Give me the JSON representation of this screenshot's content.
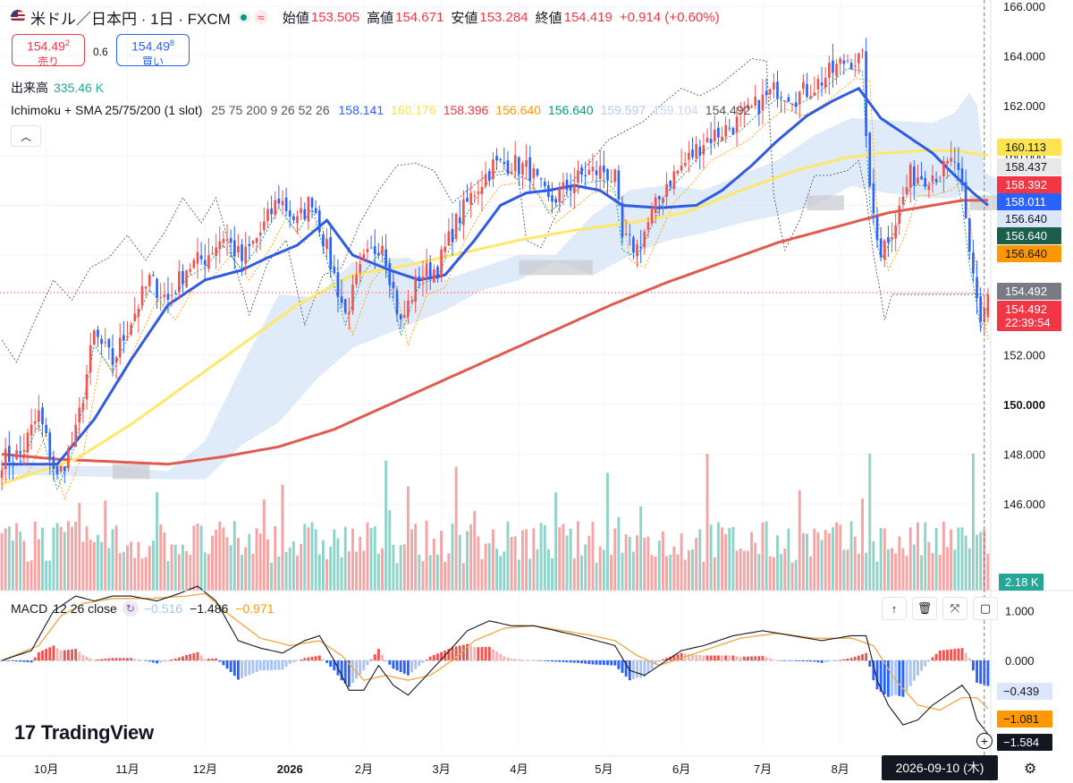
{
  "header": {
    "symbol_title": "米ドル／日本円 · 1日 · FXCM",
    "open_label": "始値",
    "open_value": "153.505",
    "high_label": "高値",
    "high_value": "154.671",
    "low_label": "安値",
    "low_value": "153.284",
    "close_label": "終値",
    "close_value": "154.419",
    "change_value": "+0.914 (+0.60%)"
  },
  "trade": {
    "sell_price_main": "154.49",
    "sell_price_sup": "2",
    "sell_label": "売り",
    "spread": "0.6",
    "buy_price_main": "154.49",
    "buy_price_sup": "8",
    "buy_label": "買い"
  },
  "volume": {
    "label": "出来高",
    "value": "335.46 K",
    "last_tag": "2.18 K"
  },
  "indicator": {
    "name": "Ichimoku + SMA 25/75/200 (1 slot)",
    "params": "25 75 200 9 26 52 26",
    "values": [
      "158.141",
      "160.176",
      "158.396",
      "156.640",
      "156.640",
      "159.597",
      "159.104",
      "154.492"
    ],
    "value_colors": [
      "#2962ff",
      "#ffe34f",
      "#f23645",
      "#ff9800",
      "#089981",
      "#b3cdf5",
      "#c8d7f0",
      "#555555"
    ]
  },
  "macd": {
    "label": "MACD",
    "params": "12 26 close",
    "values": [
      "−0.516",
      "−1.486",
      "−0.971"
    ],
    "value_colors": [
      "#a8c1f7",
      "#131722",
      "#ff9800"
    ],
    "axis_ticks": [
      "1.000",
      "0.000"
    ],
    "tags": [
      {
        "text": "−0.439",
        "bg": "#dbe6fb",
        "fg": "#131722",
        "value": -0.439
      },
      {
        "text": "−1.081",
        "bg": "#ff9800",
        "fg": "#131722",
        "value": -1.081
      },
      {
        "text": "−1.584",
        "bg": "#131722",
        "fg": "#ffffff",
        "value": -1.584
      }
    ]
  },
  "price_tags": [
    {
      "text": "160.113",
      "bg": "#ffe34f",
      "fg": "#131722",
      "value": 160.113
    },
    {
      "text": "158.437",
      "bg": "#e8e8e8",
      "fg": "#131722",
      "value": 158.437
    },
    {
      "text": "158.392",
      "bg": "#f23645",
      "fg": "#ffffff",
      "value": 158.392
    },
    {
      "text": "158.011",
      "bg": "#2962ff",
      "fg": "#ffffff",
      "value": 158.011
    },
    {
      "text": "156.640",
      "bg": "#dbe6fb",
      "fg": "#131722",
      "value": 156.64
    },
    {
      "text": "156.640",
      "bg": "#1b5e4a",
      "fg": "#ffffff",
      "value": 156.64
    },
    {
      "text": "156.640",
      "bg": "#ff9800",
      "fg": "#131722",
      "value": 156.64
    },
    {
      "text": "154.492",
      "bg": "#787b86",
      "fg": "#ffffff",
      "value": 154.492
    },
    {
      "text": "154.492",
      "bg": "#f23645",
      "fg": "#ffffff",
      "value": 154.492
    },
    {
      "text": "22:39:54",
      "bg": "#f23645",
      "fg": "#ffffff",
      "value": 154.492
    }
  ],
  "branding": {
    "logo_text": "TradingView",
    "logo_mark": "17"
  },
  "crosshair_date": "2026-09-10 (木)",
  "chart_data": {
    "type": "candlestick",
    "y_axis_ticks": [
      "166.000",
      "164.000",
      "162.000",
      "160.000",
      "158.000",
      "156.000",
      "154.000",
      "152.000",
      "150.000",
      "148.000",
      "146.000"
    ],
    "ylim": [
      145.0,
      166.0
    ],
    "x_axis_ticks": [
      "10月",
      "11月",
      "12月",
      "2026",
      "2月",
      "3月",
      "4月",
      "5月",
      "6月",
      "7月",
      "8月"
    ],
    "close_anchors": [
      [
        0,
        147.8
      ],
      [
        5,
        148.0
      ],
      [
        10,
        149.6
      ],
      [
        15,
        147.0
      ],
      [
        20,
        148.8
      ],
      [
        25,
        152.8
      ],
      [
        30,
        151.7
      ],
      [
        35,
        153.4
      ],
      [
        40,
        155.0
      ],
      [
        45,
        154.2
      ],
      [
        50,
        155.5
      ],
      [
        55,
        155.9
      ],
      [
        60,
        156.8
      ],
      [
        65,
        155.8
      ],
      [
        70,
        156.9
      ],
      [
        75,
        158.3
      ],
      [
        80,
        157.3
      ],
      [
        84,
        158.3
      ],
      [
        88,
        156.2
      ],
      [
        93,
        153.6
      ],
      [
        98,
        155.7
      ],
      [
        103,
        156.6
      ],
      [
        108,
        153.2
      ],
      [
        113,
        155.2
      ],
      [
        118,
        155.5
      ],
      [
        123,
        157.3
      ],
      [
        128,
        158.6
      ],
      [
        133,
        159.6
      ],
      [
        138,
        159.7
      ],
      [
        143,
        159.4
      ],
      [
        148,
        158.1
      ],
      [
        153,
        158.7
      ],
      [
        158,
        159.3
      ],
      [
        163,
        159.4
      ],
      [
        166,
        159.0
      ],
      [
        168,
        156.6
      ],
      [
        172,
        156.3
      ],
      [
        176,
        157.6
      ],
      [
        180,
        158.9
      ],
      [
        185,
        159.7
      ],
      [
        190,
        160.6
      ],
      [
        195,
        161.0
      ],
      [
        200,
        161.4
      ],
      [
        205,
        162.1
      ],
      [
        210,
        162.7
      ],
      [
        215,
        162.4
      ],
      [
        220,
        162.8
      ],
      [
        225,
        163.4
      ],
      [
        229,
        163.9
      ],
      [
        233,
        163.8
      ],
      [
        235,
        158.4
      ],
      [
        238,
        156.2
      ],
      [
        242,
        157.4
      ],
      [
        246,
        159.2
      ],
      [
        250,
        159.2
      ],
      [
        255,
        159.4
      ],
      [
        258,
        159.8
      ],
      [
        260,
        158.4
      ],
      [
        262,
        156.0
      ],
      [
        264,
        154.4
      ],
      [
        265,
        153.4
      ],
      [
        266,
        153.9
      ],
      [
        267,
        154.42
      ]
    ],
    "sma_25_anchors": [
      [
        0,
        147.6
      ],
      [
        15,
        147.6
      ],
      [
        25,
        149.4
      ],
      [
        35,
        151.8
      ],
      [
        45,
        154.0
      ],
      [
        55,
        155.0
      ],
      [
        65,
        155.4
      ],
      [
        72,
        155.9
      ],
      [
        80,
        156.4
      ],
      [
        88,
        157.4
      ],
      [
        95,
        156.0
      ],
      [
        105,
        155.4
      ],
      [
        113,
        155.0
      ],
      [
        120,
        155.2
      ],
      [
        128,
        156.6
      ],
      [
        135,
        158.0
      ],
      [
        142,
        158.5
      ],
      [
        148,
        158.6
      ],
      [
        155,
        158.8
      ],
      [
        162,
        158.6
      ],
      [
        168,
        158.0
      ],
      [
        178,
        157.9
      ],
      [
        188,
        158.0
      ],
      [
        195,
        158.6
      ],
      [
        203,
        159.6
      ],
      [
        210,
        160.6
      ],
      [
        218,
        161.6
      ],
      [
        225,
        162.2
      ],
      [
        232,
        162.7
      ],
      [
        238,
        161.5
      ],
      [
        245,
        160.8
      ],
      [
        252,
        160.1
      ],
      [
        258,
        159.2
      ],
      [
        263,
        158.5
      ],
      [
        267,
        158.0
      ]
    ],
    "sma_75_anchors": [
      [
        0,
        146.8
      ],
      [
        20,
        147.8
      ],
      [
        35,
        149.2
      ],
      [
        50,
        150.8
      ],
      [
        65,
        152.4
      ],
      [
        80,
        154.0
      ],
      [
        95,
        155.2
      ],
      [
        110,
        155.6
      ],
      [
        125,
        156.1
      ],
      [
        140,
        156.6
      ],
      [
        155,
        157.0
      ],
      [
        170,
        157.3
      ],
      [
        185,
        157.7
      ],
      [
        200,
        158.6
      ],
      [
        215,
        159.4
      ],
      [
        228,
        159.9
      ],
      [
        238,
        160.1
      ],
      [
        250,
        160.2
      ],
      [
        258,
        160.2
      ],
      [
        263,
        160.1
      ],
      [
        267,
        160.0
      ]
    ],
    "sma_200_anchors": [
      [
        0,
        148.0
      ],
      [
        15,
        147.8
      ],
      [
        30,
        147.7
      ],
      [
        45,
        147.6
      ],
      [
        60,
        147.9
      ],
      [
        75,
        148.3
      ],
      [
        90,
        149.0
      ],
      [
        105,
        150.0
      ],
      [
        120,
        151.0
      ],
      [
        135,
        152.0
      ],
      [
        150,
        153.0
      ],
      [
        165,
        154.0
      ],
      [
        180,
        154.9
      ],
      [
        195,
        155.7
      ],
      [
        210,
        156.5
      ],
      [
        225,
        157.1
      ],
      [
        240,
        157.7
      ],
      [
        252,
        158.0
      ],
      [
        260,
        158.2
      ],
      [
        267,
        158.2
      ]
    ],
    "cloud_top_anchors": [
      [
        0,
        147.5
      ],
      [
        30,
        147.5
      ],
      [
        45,
        147.3
      ],
      [
        55,
        148.5
      ],
      [
        65,
        151.5
      ],
      [
        75,
        154.4
      ],
      [
        85,
        154.3
      ],
      [
        95,
        155.7
      ],
      [
        110,
        155.9
      ],
      [
        120,
        155.0
      ],
      [
        130,
        155.5
      ],
      [
        140,
        156.0
      ],
      [
        150,
        156.0
      ],
      [
        160,
        157.6
      ],
      [
        170,
        158.6
      ],
      [
        180,
        158.8
      ],
      [
        190,
        158.6
      ],
      [
        200,
        159.2
      ],
      [
        210,
        159.8
      ],
      [
        220,
        160.8
      ],
      [
        230,
        161.5
      ],
      [
        240,
        161.4
      ],
      [
        252,
        161.3
      ],
      [
        258,
        161.7
      ],
      [
        262,
        162.5
      ],
      [
        264,
        162.0
      ],
      [
        266,
        159.3
      ],
      [
        270,
        159.0
      ],
      [
        275,
        159.2
      ]
    ],
    "cloud_bottom_anchors": [
      [
        0,
        147.2
      ],
      [
        30,
        147.1
      ],
      [
        45,
        147.0
      ],
      [
        55,
        147.0
      ],
      [
        65,
        148.4
      ],
      [
        75,
        149.3
      ],
      [
        85,
        151.0
      ],
      [
        95,
        152.3
      ],
      [
        110,
        153.2
      ],
      [
        120,
        153.8
      ],
      [
        130,
        154.6
      ],
      [
        140,
        155.0
      ],
      [
        150,
        155.8
      ],
      [
        160,
        155.2
      ],
      [
        170,
        156.0
      ],
      [
        180,
        156.6
      ],
      [
        190,
        156.9
      ],
      [
        200,
        157.3
      ],
      [
        210,
        157.6
      ],
      [
        220,
        158.0
      ],
      [
        230,
        158.8
      ],
      [
        240,
        158.5
      ],
      [
        252,
        158.3
      ],
      [
        258,
        158.3
      ],
      [
        262,
        158.7
      ],
      [
        264,
        158.6
      ],
      [
        266,
        158.6
      ],
      [
        270,
        158.3
      ],
      [
        275,
        158.5
      ]
    ],
    "volume_axis_max": 20000,
    "macd_ylim": [
      -1.75,
      1.5
    ],
    "macd_anchors": [
      [
        0,
        0.0
      ],
      [
        8,
        0.2
      ],
      [
        14,
        1.0
      ],
      [
        20,
        1.3
      ],
      [
        25,
        1.2
      ],
      [
        30,
        1.3
      ],
      [
        35,
        1.3
      ],
      [
        42,
        1.2
      ],
      [
        48,
        1.35
      ],
      [
        53,
        1.5
      ],
      [
        58,
        1.2
      ],
      [
        64,
        0.4
      ],
      [
        70,
        0.25
      ],
      [
        76,
        0.15
      ],
      [
        82,
        0.4
      ],
      [
        86,
        0.5
      ],
      [
        90,
        0.0
      ],
      [
        94,
        -0.6
      ],
      [
        98,
        -0.6
      ],
      [
        102,
        -0.1
      ],
      [
        106,
        -0.5
      ],
      [
        110,
        -0.7
      ],
      [
        115,
        -0.3
      ],
      [
        120,
        0.1
      ],
      [
        126,
        0.6
      ],
      [
        132,
        0.8
      ],
      [
        138,
        0.7
      ],
      [
        144,
        0.7
      ],
      [
        150,
        0.6
      ],
      [
        156,
        0.5
      ],
      [
        161,
        0.4
      ],
      [
        166,
        0.3
      ],
      [
        170,
        -0.2
      ],
      [
        174,
        -0.3
      ],
      [
        178,
        -0.1
      ],
      [
        184,
        0.2
      ],
      [
        190,
        0.3
      ],
      [
        198,
        0.5
      ],
      [
        206,
        0.6
      ],
      [
        214,
        0.5
      ],
      [
        222,
        0.4
      ],
      [
        230,
        0.5
      ],
      [
        234,
        0.5
      ],
      [
        237,
        -0.4
      ],
      [
        240,
        -0.9
      ],
      [
        244,
        -1.3
      ],
      [
        248,
        -1.2
      ],
      [
        252,
        -0.9
      ],
      [
        256,
        -0.7
      ],
      [
        260,
        -0.5
      ],
      [
        262,
        -0.7
      ],
      [
        264,
        -1.2
      ],
      [
        267,
        -1.486
      ]
    ],
    "macd_signal_anchors": [
      [
        0,
        0.0
      ],
      [
        10,
        0.3
      ],
      [
        16,
        0.9
      ],
      [
        22,
        1.15
      ],
      [
        30,
        1.25
      ],
      [
        40,
        1.25
      ],
      [
        50,
        1.3
      ],
      [
        55,
        1.35
      ],
      [
        62,
        0.9
      ],
      [
        70,
        0.45
      ],
      [
        78,
        0.3
      ],
      [
        86,
        0.4
      ],
      [
        92,
        0.1
      ],
      [
        98,
        -0.4
      ],
      [
        104,
        -0.3
      ],
      [
        110,
        -0.4
      ],
      [
        116,
        -0.3
      ],
      [
        122,
        0.0
      ],
      [
        128,
        0.4
      ],
      [
        136,
        0.65
      ],
      [
        144,
        0.7
      ],
      [
        152,
        0.6
      ],
      [
        160,
        0.5
      ],
      [
        166,
        0.4
      ],
      [
        172,
        0.1
      ],
      [
        178,
        -0.1
      ],
      [
        184,
        0.05
      ],
      [
        192,
        0.25
      ],
      [
        200,
        0.45
      ],
      [
        210,
        0.55
      ],
      [
        220,
        0.45
      ],
      [
        230,
        0.45
      ],
      [
        236,
        0.3
      ],
      [
        242,
        -0.4
      ],
      [
        248,
        -0.9
      ],
      [
        254,
        -1.0
      ],
      [
        260,
        -0.75
      ],
      [
        264,
        -0.75
      ],
      [
        267,
        -0.971
      ]
    ]
  }
}
